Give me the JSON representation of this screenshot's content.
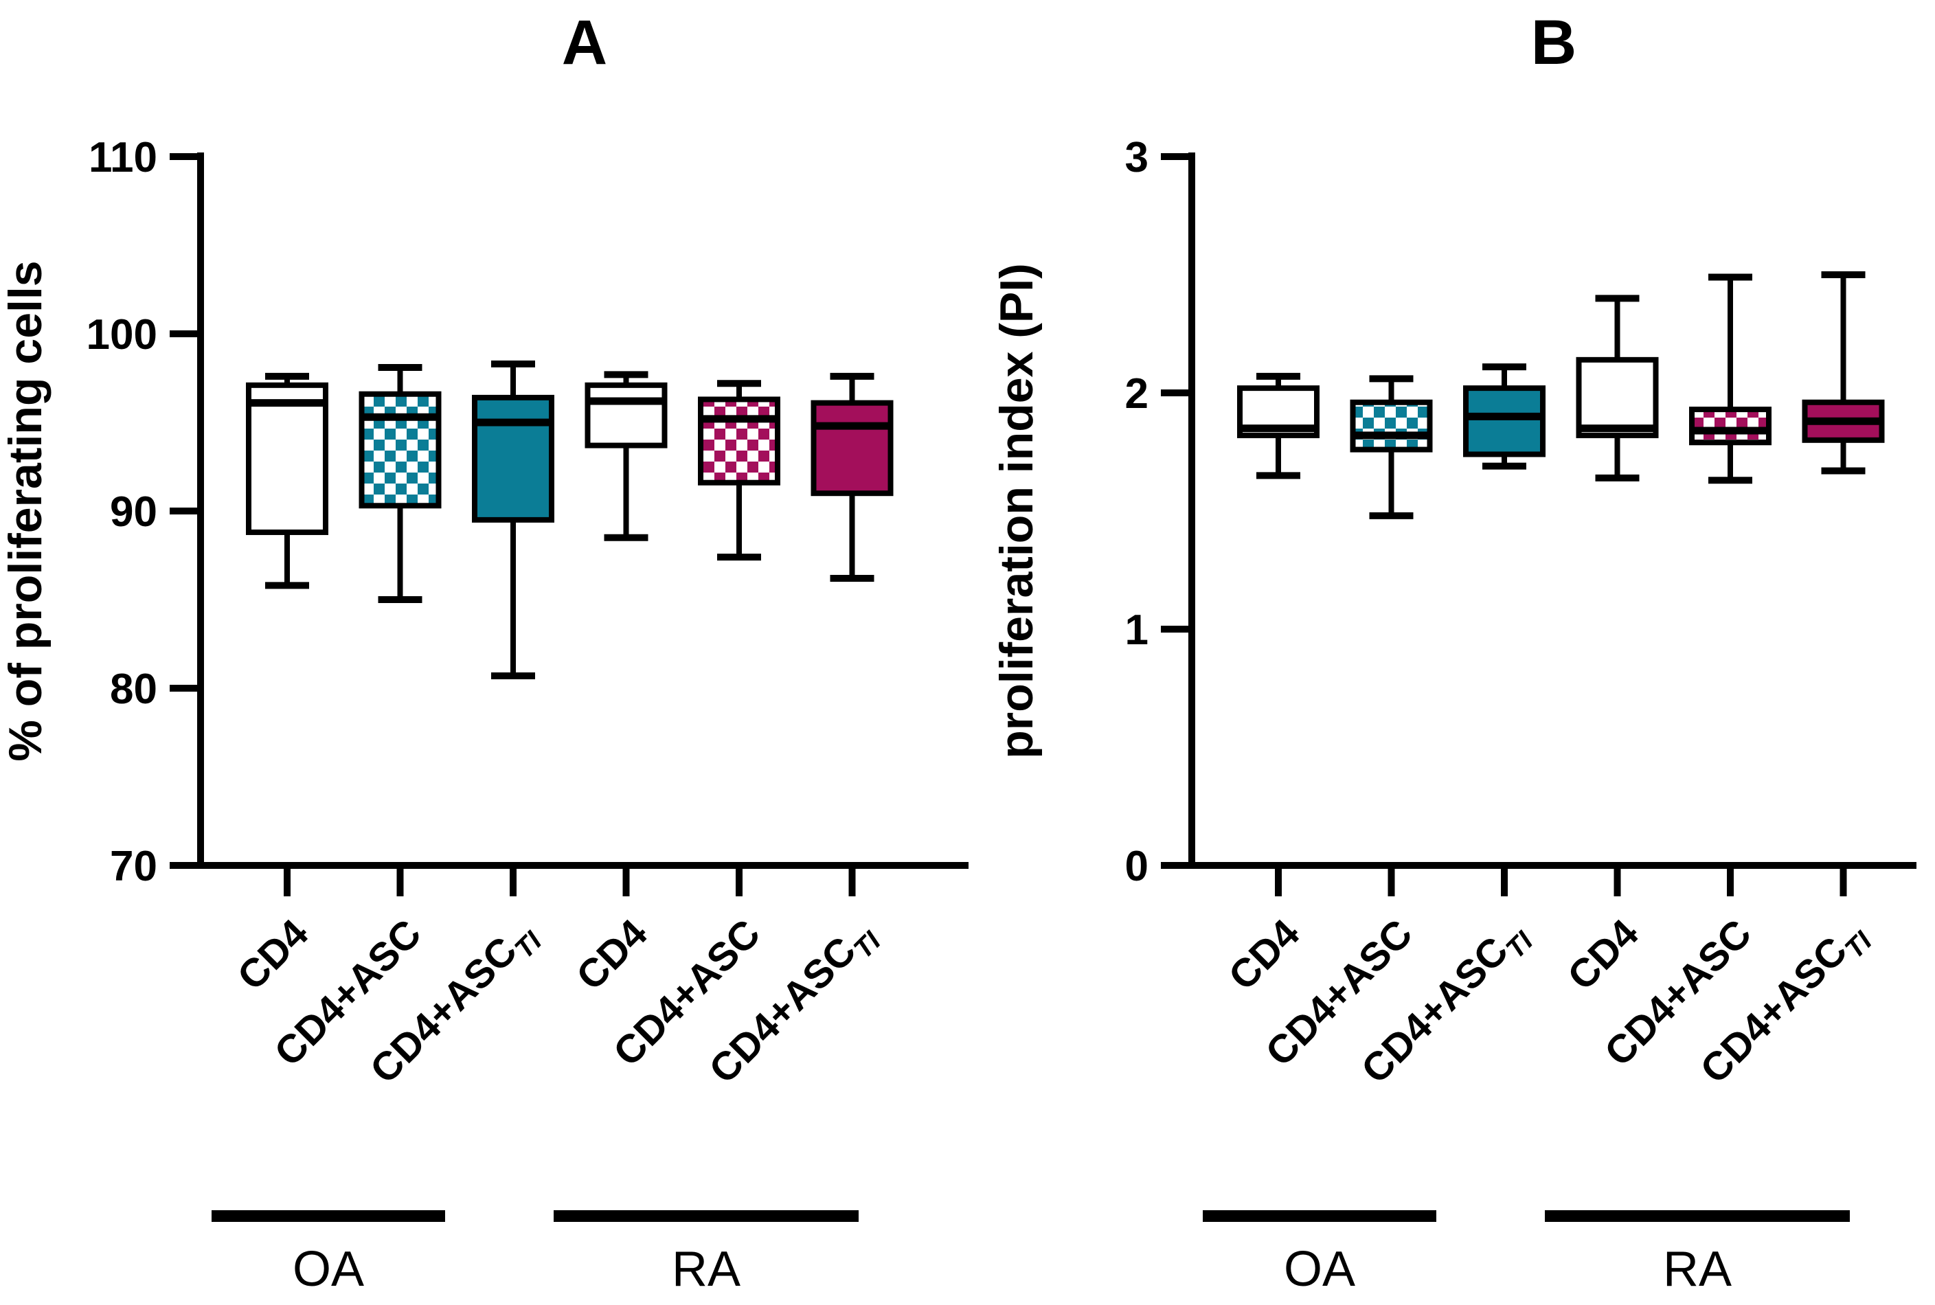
{
  "figure": {
    "background": "#ffffff",
    "panel_a_title": "A",
    "panel_b_title": "B"
  },
  "colors": {
    "teal": "#0b7d96",
    "magenta": "#a30f5b",
    "axis": "#000000",
    "box_white_fill": "#ffffff"
  },
  "chart_data": [
    {
      "type": "box",
      "title": "A",
      "ylabel": "% of proliferating cells",
      "ylim": [
        70,
        110
      ],
      "yticks": [
        70,
        80,
        90,
        100,
        110
      ],
      "grid": false,
      "legend": "none",
      "group_labels": [
        "OA",
        "RA"
      ],
      "categories": [
        {
          "label": "CD4",
          "sub": ""
        },
        {
          "label": "CD4+ASC",
          "sub": ""
        },
        {
          "label": "CD4+ASC",
          "sub": "TI"
        },
        {
          "label": "CD4",
          "sub": ""
        },
        {
          "label": "CD4+ASC",
          "sub": ""
        },
        {
          "label": "CD4+ASC",
          "sub": "TI"
        }
      ],
      "series": [
        {
          "name": "OA CD4",
          "group": "OA",
          "pattern": "none",
          "color": "#ffffff",
          "whisker_lo": 85.8,
          "q1": 88.8,
          "median": 96.1,
          "q3": 97.1,
          "whisker_hi": 97.6
        },
        {
          "name": "OA CD4+ASC",
          "group": "OA",
          "pattern": "checker",
          "color": "#0b7d96",
          "whisker_lo": 85.0,
          "q1": 90.3,
          "median": 95.3,
          "q3": 96.6,
          "whisker_hi": 98.1
        },
        {
          "name": "OA CD4+ASC TI",
          "group": "OA",
          "pattern": "solid",
          "color": "#0b7d96",
          "whisker_lo": 80.7,
          "q1": 89.5,
          "median": 95.0,
          "q3": 96.4,
          "whisker_hi": 98.3
        },
        {
          "name": "RA CD4",
          "group": "RA",
          "pattern": "none",
          "color": "#ffffff",
          "whisker_lo": 88.5,
          "q1": 93.7,
          "median": 96.2,
          "q3": 97.1,
          "whisker_hi": 97.7
        },
        {
          "name": "RA CD4+ASC",
          "group": "RA",
          "pattern": "checker",
          "color": "#a30f5b",
          "whisker_lo": 87.4,
          "q1": 91.6,
          "median": 95.2,
          "q3": 96.3,
          "whisker_hi": 97.2
        },
        {
          "name": "RA CD4+ASC TI",
          "group": "RA",
          "pattern": "solid",
          "color": "#a30f5b",
          "whisker_lo": 86.2,
          "q1": 91.0,
          "median": 94.8,
          "q3": 96.1,
          "whisker_hi": 97.6
        }
      ]
    },
    {
      "type": "box",
      "title": "B",
      "ylabel": "proliferation index (PI)",
      "ylim": [
        0,
        3
      ],
      "yticks": [
        0,
        1,
        2,
        3
      ],
      "grid": false,
      "legend": "none",
      "group_labels": [
        "OA",
        "RA"
      ],
      "categories": [
        {
          "label": "CD4",
          "sub": ""
        },
        {
          "label": "CD4+ASC",
          "sub": ""
        },
        {
          "label": "CD4+ASC",
          "sub": "TI"
        },
        {
          "label": "CD4",
          "sub": ""
        },
        {
          "label": "CD4+ASC",
          "sub": ""
        },
        {
          "label": "CD4+ASC",
          "sub": "TI"
        }
      ],
      "series": [
        {
          "name": "OA CD4",
          "group": "OA",
          "pattern": "none",
          "color": "#ffffff",
          "whisker_lo": 1.65,
          "q1": 1.82,
          "median": 1.85,
          "q3": 2.02,
          "whisker_hi": 2.07
        },
        {
          "name": "OA CD4+ASC",
          "group": "OA",
          "pattern": "checker",
          "color": "#0b7d96",
          "whisker_lo": 1.48,
          "q1": 1.76,
          "median": 1.82,
          "q3": 1.96,
          "whisker_hi": 2.06
        },
        {
          "name": "OA CD4+ASC TI",
          "group": "OA",
          "pattern": "solid",
          "color": "#0b7d96",
          "whisker_lo": 1.69,
          "q1": 1.74,
          "median": 1.9,
          "q3": 2.02,
          "whisker_hi": 2.11
        },
        {
          "name": "RA CD4",
          "group": "RA",
          "pattern": "none",
          "color": "#ffffff",
          "whisker_lo": 1.64,
          "q1": 1.82,
          "median": 1.85,
          "q3": 2.14,
          "whisker_hi": 2.4
        },
        {
          "name": "RA CD4+ASC",
          "group": "RA",
          "pattern": "checker",
          "color": "#a30f5b",
          "whisker_lo": 1.63,
          "q1": 1.79,
          "median": 1.84,
          "q3": 1.93,
          "whisker_hi": 2.49
        },
        {
          "name": "RA CD4+ASC TI",
          "group": "RA",
          "pattern": "solid",
          "color": "#a30f5b",
          "whisker_lo": 1.67,
          "q1": 1.8,
          "median": 1.88,
          "q3": 1.96,
          "whisker_hi": 2.5
        }
      ]
    }
  ]
}
